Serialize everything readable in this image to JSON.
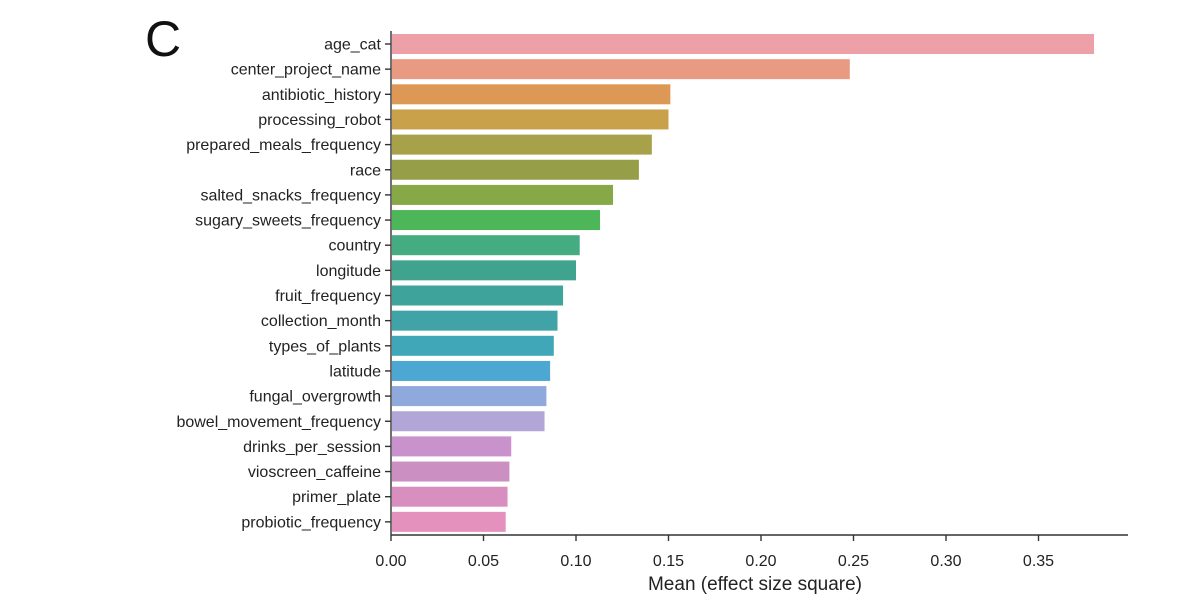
{
  "panel_label": "C",
  "chart_data": {
    "type": "bar",
    "orientation": "horizontal",
    "title": "",
    "xlabel": "Mean (effect size square)",
    "ylabel": "",
    "xlim": [
      0,
      0.4
    ],
    "xticks": [
      0.0,
      0.05,
      0.1,
      0.15,
      0.2,
      0.25,
      0.3,
      0.35
    ],
    "xtick_labels": [
      "0.00",
      "0.05",
      "0.10",
      "0.15",
      "0.20",
      "0.25",
      "0.30",
      "0.35"
    ],
    "grid": false,
    "categories": [
      "age_cat",
      "center_project_name",
      "antibiotic_history",
      "processing_robot",
      "prepared_meals_frequency",
      "race",
      "salted_snacks_frequency",
      "sugary_sweets_frequency",
      "country",
      "longitude",
      "fruit_frequency",
      "collection_month",
      "types_of_plants",
      "latitude",
      "fungal_overgrowth",
      "bowel_movement_frequency",
      "drinks_per_session",
      "vioscreen_caffeine",
      "primer_plate",
      "probiotic_frequency"
    ],
    "values": [
      0.38,
      0.248,
      0.151,
      0.15,
      0.141,
      0.134,
      0.12,
      0.113,
      0.102,
      0.1,
      0.093,
      0.09,
      0.088,
      0.086,
      0.084,
      0.083,
      0.065,
      0.064,
      0.063,
      0.062
    ],
    "colors": [
      "#eda0a8",
      "#e99a83",
      "#de9855",
      "#c8a14a",
      "#a7a14a",
      "#969e47",
      "#86a847",
      "#4db659",
      "#45ab80",
      "#3fa38d",
      "#3ea39a",
      "#40a3a8",
      "#3fa7b8",
      "#4ca7d2",
      "#90a9dc",
      "#b2a5d8",
      "#c992cc",
      "#cc8fc2",
      "#d88fc0",
      "#e491be"
    ]
  }
}
